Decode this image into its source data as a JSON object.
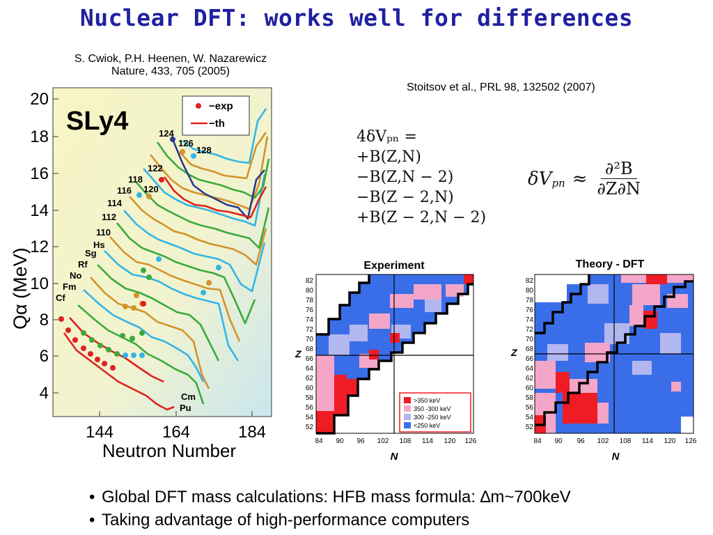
{
  "slide": {
    "title": "Nuclear DFT: works well for differences",
    "ref_left_line1": "S. Cwiok, P.H. Heenen, W. Nazarewicz",
    "ref_left_line2": "Nature, 433, 705 (2005)",
    "ref_right": "Stoitsov et al., PRL 98, 132502 (2007)",
    "bullets": [
      "Global DFT mass calculations: HFB mass formula: ∆m~700keV",
      "Taking advantage of high-performance computers"
    ]
  },
  "equations": {
    "lines": [
      "4δVₚₙ =",
      "+B(Z,N)",
      "−B(Z,N − 2)",
      "−B(Z − 2,N)",
      "+B(Z − 2,N − 2)"
    ],
    "lhs": "δV",
    "lhs_sub": "pn",
    "approx": "≈",
    "numerator": "∂²B",
    "denominator": "∂Z∂N"
  },
  "left_chart": {
    "label": "SLy4",
    "ylabel": "Qα (MeV)",
    "xlabel": "Neutron Number",
    "yticks": [
      "20",
      "18",
      "16",
      "14",
      "12",
      "10",
      "8",
      "6",
      "4"
    ],
    "xticks": [
      "144",
      "164",
      "184"
    ],
    "legend": [
      "−exp",
      "−th"
    ],
    "element_labels": [
      "Cf",
      "Fm",
      "No",
      "Rf",
      "Sg",
      "Hs",
      "110",
      "112",
      "114",
      "116",
      "118",
      "120",
      "122",
      "124",
      "126",
      "128",
      "Cm",
      "Pu"
    ],
    "colors": {
      "exp": "#e02020",
      "th": "#e02020",
      "background": "#f5f3c8",
      "blue": "#2a3a90",
      "cyan": "#33b5e5",
      "orange": "#d4922a",
      "green": "#3aaa3a"
    }
  },
  "experiment_map": {
    "title": "Experiment",
    "xlabel": "N",
    "ylabel": "Z",
    "yticks": [
      "82",
      "80",
      "78",
      "76",
      "74",
      "72",
      "70",
      "68",
      "66",
      "64",
      "62",
      "60",
      "58",
      "56",
      "54",
      "52"
    ],
    "xticks": [
      "84",
      "90",
      "96",
      "102",
      "108",
      "114",
      "120",
      "126"
    ],
    "legend": [
      ">350 keV",
      "350 -300 keV",
      "300 -250 keV",
      "<250 keV"
    ],
    "legend_colors": [
      "#ee1c24",
      "#f4a6c8",
      "#b3b7f0",
      "#3a6ee8"
    ]
  },
  "theory_map": {
    "title": "Theory - DFT",
    "xlabel": "N",
    "ylabel": "Z",
    "yticks": [
      "82",
      "80",
      "78",
      "76",
      "74",
      "72",
      "70",
      "68",
      "66",
      "64",
      "62",
      "60",
      "58",
      "56",
      "54",
      "52"
    ],
    "xticks": [
      "84",
      "90",
      "96",
      "102",
      "108",
      "114",
      "120",
      "126"
    ]
  }
}
